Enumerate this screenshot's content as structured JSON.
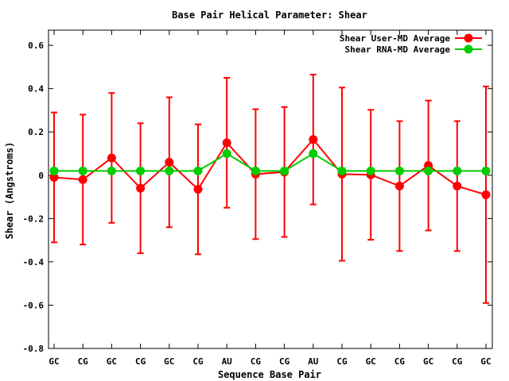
{
  "chart_data": {
    "type": "line",
    "title": "Base Pair Helical Parameter: Shear",
    "xlabel": "Sequence Base Pair",
    "ylabel": "Shear (Angstroms)",
    "categories": [
      "GC",
      "CG",
      "GC",
      "CG",
      "GC",
      "CG",
      "AU",
      "CG",
      "CG",
      "AU",
      "CG",
      "GC",
      "CG",
      "GC",
      "CG",
      "GC"
    ],
    "ylim": [
      -0.8,
      0.67
    ],
    "yticks": [
      -0.8,
      -0.6,
      -0.4,
      -0.2,
      0,
      0.2,
      0.4,
      0.6
    ],
    "ytick_labels": [
      "-0.8",
      "-0.6",
      "-0.4",
      "-0.2",
      "0",
      "0.2",
      "0.4",
      "0.6"
    ],
    "legend_position": "top-right",
    "grid": false,
    "series": [
      {
        "name": "Shear User-MD Average",
        "color": "#ff0000",
        "values": [
          -0.01,
          -0.02,
          0.08,
          -0.06,
          0.06,
          -0.065,
          0.15,
          0.005,
          0.015,
          0.165,
          0.005,
          0.002,
          -0.05,
          0.045,
          -0.05,
          -0.09
        ],
        "error": [
          0.3,
          0.3,
          0.3,
          0.3,
          0.3,
          0.3,
          0.3,
          0.3,
          0.3,
          0.3,
          0.4,
          0.3,
          0.3,
          0.3,
          0.3,
          0.5
        ]
      },
      {
        "name": "Shear RNA-MD Average",
        "color": "#00cc00",
        "values": [
          0.02,
          0.02,
          0.02,
          0.02,
          0.02,
          0.02,
          0.1,
          0.02,
          0.02,
          0.1,
          0.02,
          0.02,
          0.02,
          0.02,
          0.02,
          0.02
        ]
      }
    ]
  }
}
